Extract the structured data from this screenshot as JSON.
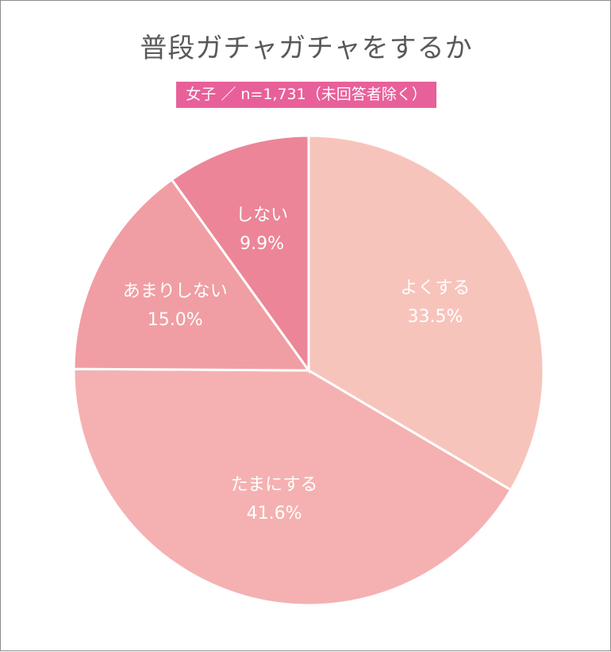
{
  "chart_data": {
    "type": "pie",
    "title": "普段ガチャガチャをするか",
    "subtitle": "女子 ／ n=1,731（未回答者除く）",
    "slices": [
      {
        "label": "よくする",
        "value": 33.5,
        "value_label": "33.5%",
        "color": "#f7c4bc"
      },
      {
        "label": "たまにする",
        "value": 41.6,
        "value_label": "41.6%",
        "color": "#f5b1b1"
      },
      {
        "label": "あまりしない",
        "value": 15.0,
        "value_label": "15.0%",
        "color": "#f09ea3"
      },
      {
        "label": "しない",
        "value": 9.9,
        "value_label": "9.9%",
        "color": "#ec8598"
      }
    ]
  }
}
